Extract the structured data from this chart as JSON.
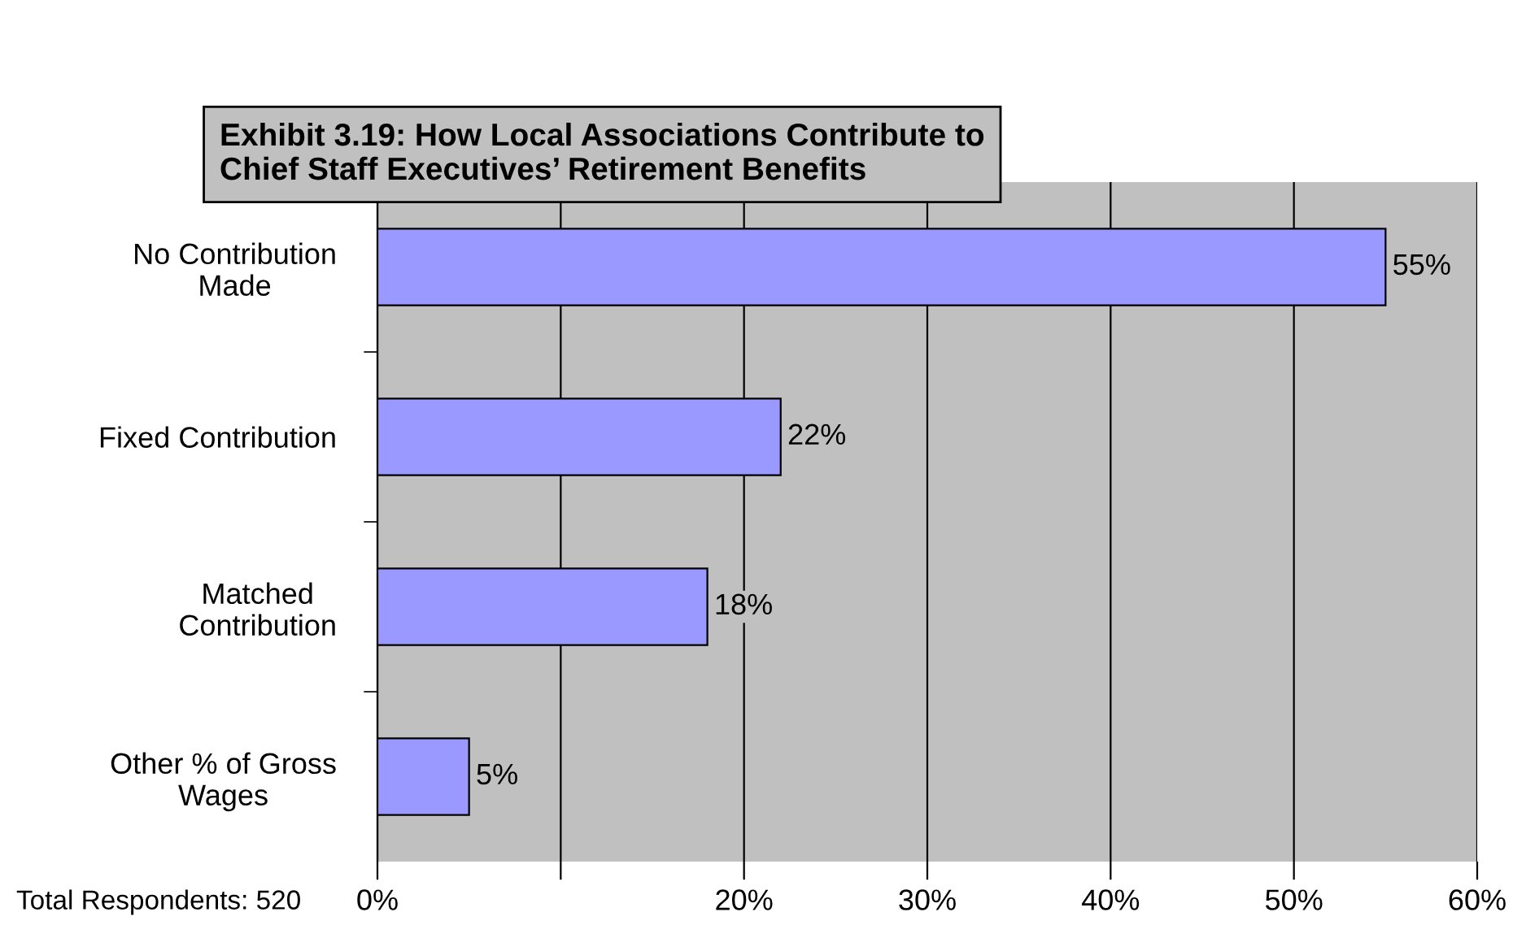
{
  "chart_data": {
    "type": "bar",
    "orientation": "horizontal",
    "title": "Exhibit 3.19: How Local Associations Contribute to\nChief Staff Executives’ Retirement Benefits",
    "categories": [
      "No Contribution\nMade",
      "Fixed Contribution",
      "Matched\nContribution",
      "Other % of Gross\nWages"
    ],
    "values": [
      55,
      22,
      18,
      5
    ],
    "color": "#9999ff",
    "value_labels": [
      "55%",
      "22%",
      "18%",
      "5%"
    ],
    "xlim": [
      0,
      60
    ],
    "xticks": [
      {
        "value": 0,
        "label": "0%"
      },
      {
        "value": 10,
        "label": null
      },
      {
        "value": 20,
        "label": "20%"
      },
      {
        "value": 30,
        "label": "30%"
      },
      {
        "value": 40,
        "label": "40%"
      },
      {
        "value": 50,
        "label": "50%"
      },
      {
        "value": 60,
        "label": "60%"
      }
    ],
    "grid": "x",
    "legend": false,
    "annotations": [
      "Total Respondents: 520"
    ]
  }
}
